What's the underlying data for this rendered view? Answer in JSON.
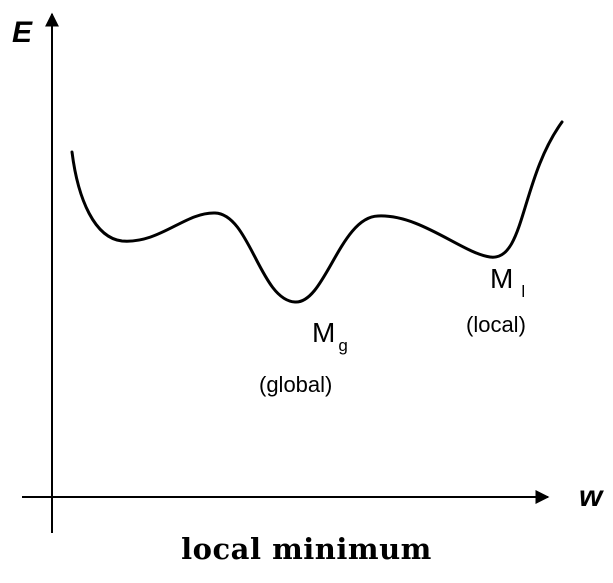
{
  "axes": {
    "y_label": "E",
    "x_label": "w"
  },
  "minima": {
    "global": {
      "symbol": "M",
      "subscript": "g",
      "note": "(global)"
    },
    "local": {
      "symbol": "M",
      "subscript": "l",
      "note": "(local)"
    }
  },
  "caption": "local minimum"
}
